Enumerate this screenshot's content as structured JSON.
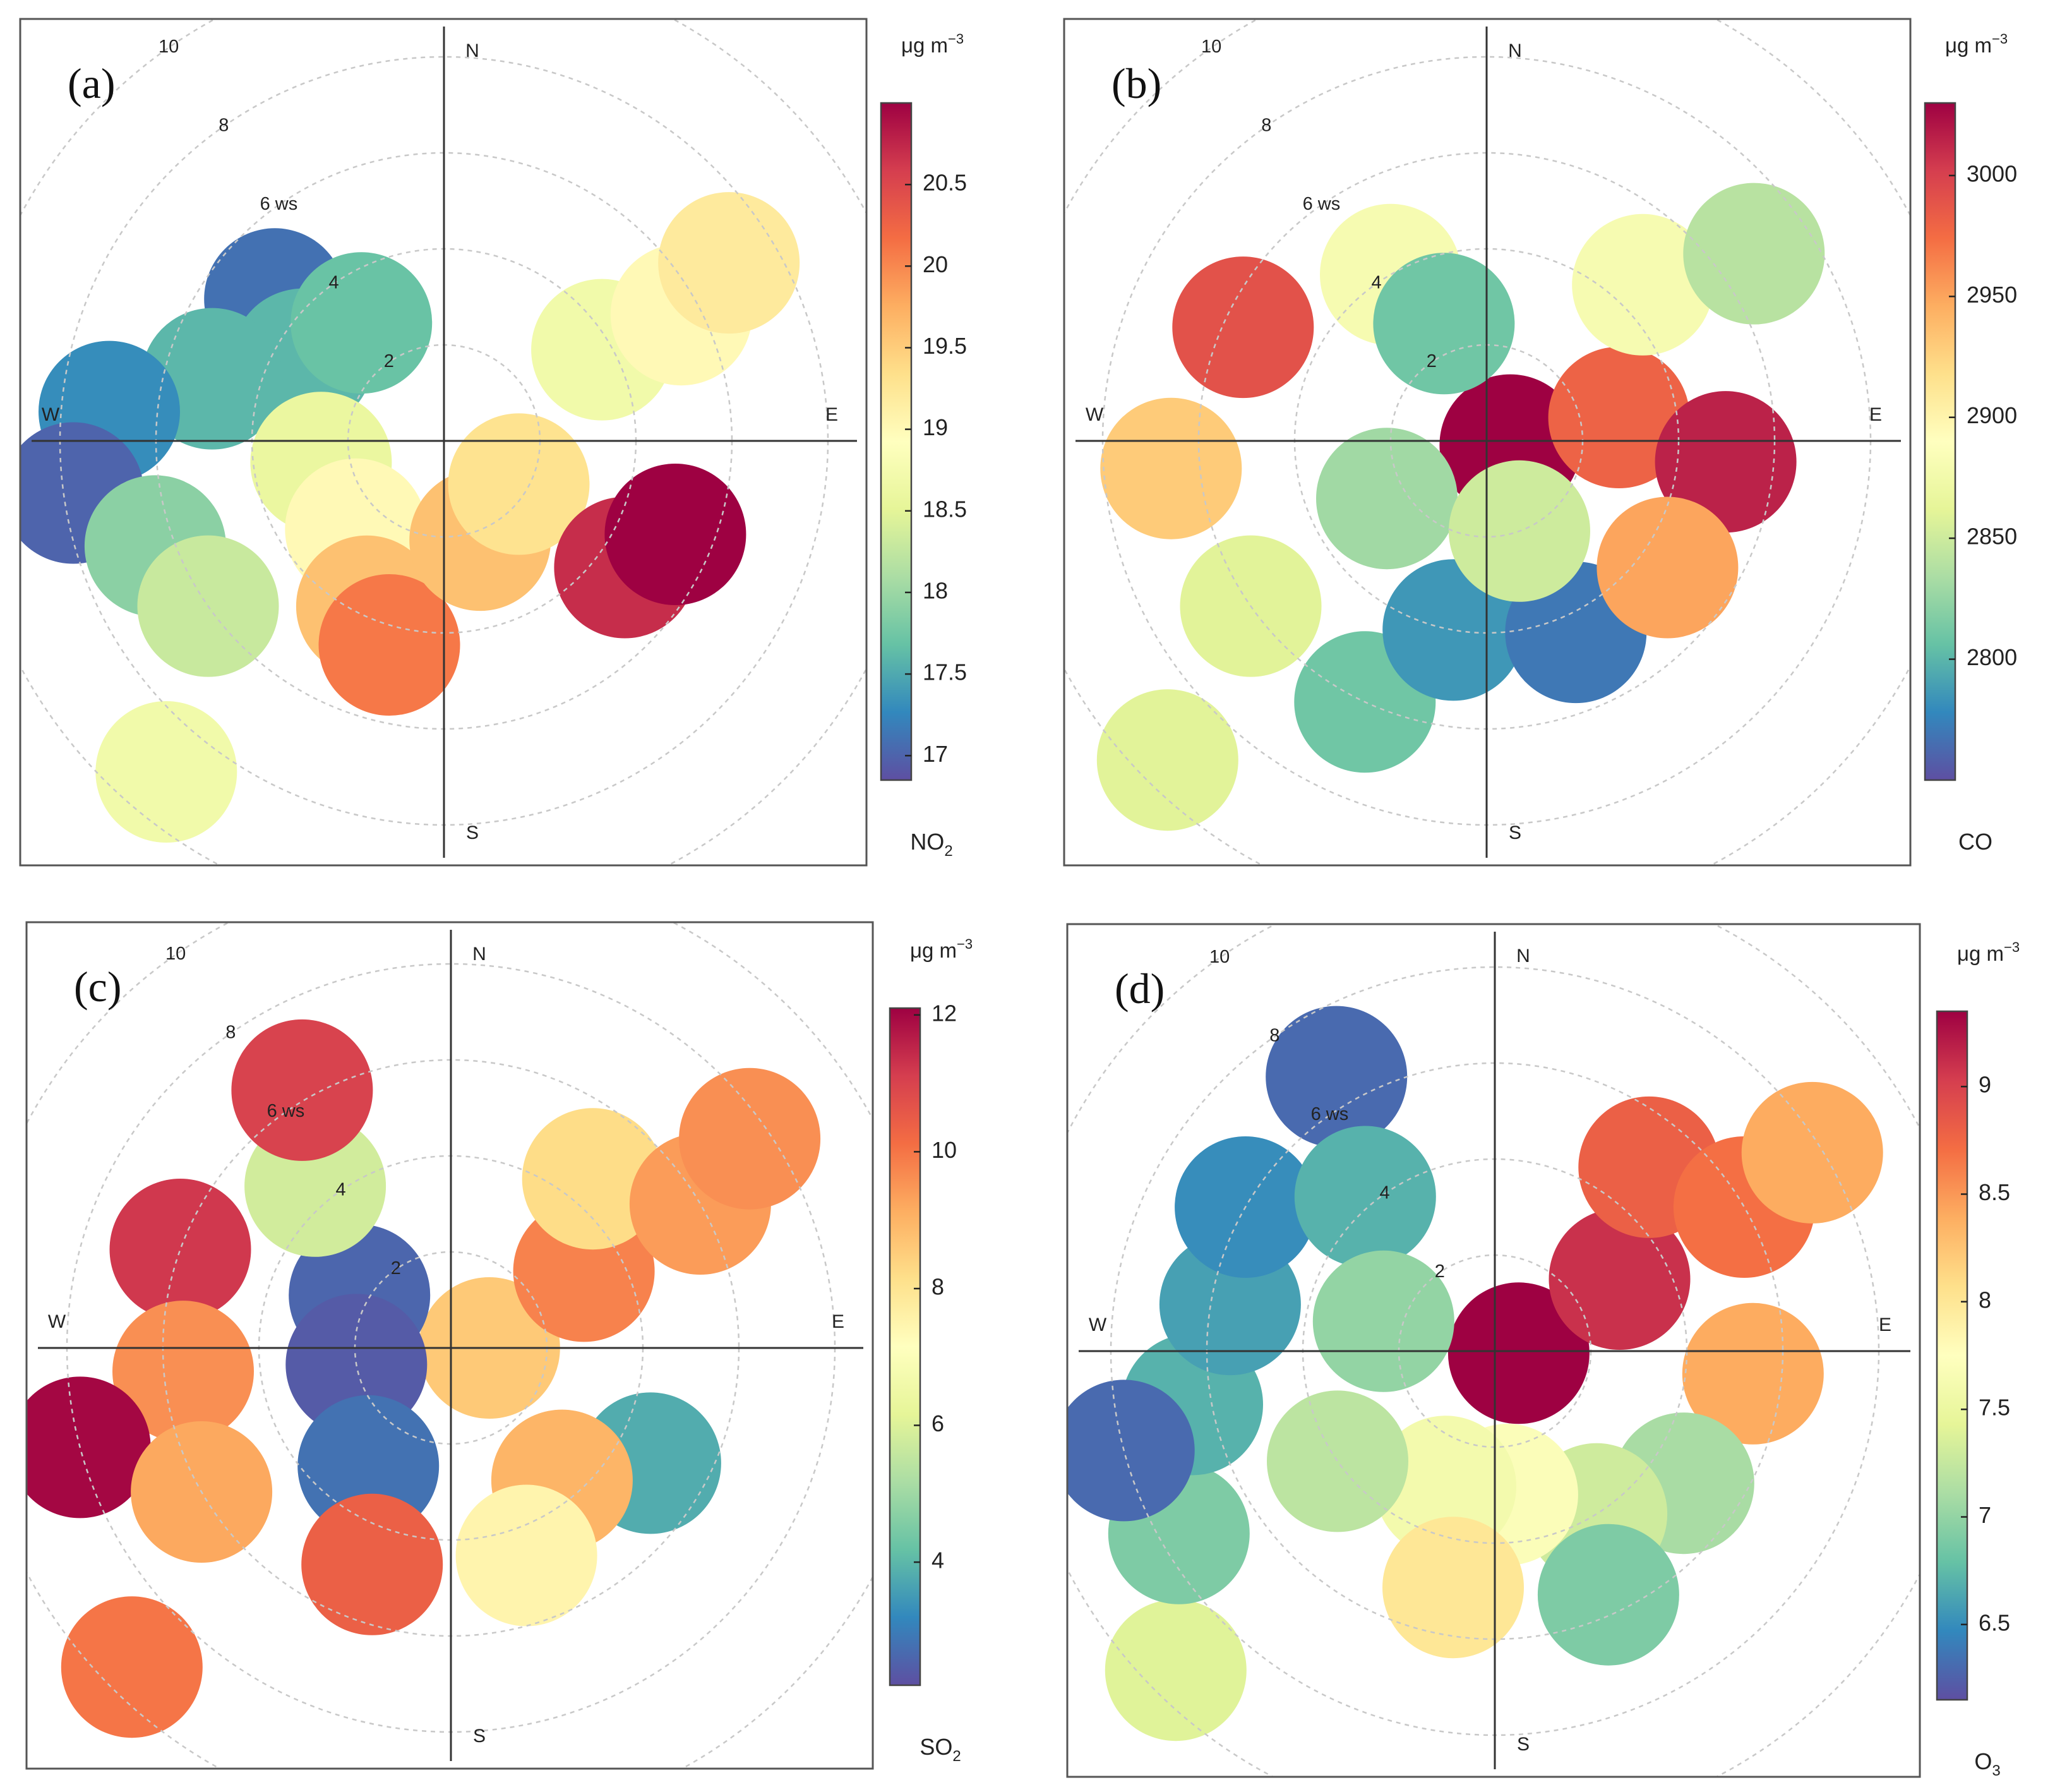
{
  "figure": {
    "colors": [
      "#5e4fa2",
      "#3288bd",
      "#66c2a5",
      "#abdda4",
      "#e6f598",
      "#ffffbf",
      "#fee08b",
      "#fdae61",
      "#f46d43",
      "#d53e4f",
      "#9e0142"
    ]
  },
  "chart_data": [
    {
      "type": "heatmap",
      "panel": "(a)",
      "subtype": "polar plot (wind speed vs wind direction)",
      "pollutant": "NO",
      "pollutant_sub": "2",
      "unit_base": "μg m",
      "unit_exp": "−3",
      "directions": {
        "N": "N",
        "E": "E",
        "S": "S",
        "W": "W"
      },
      "ws_rings": [
        2,
        4,
        6,
        8,
        10
      ],
      "ws_ring_labels": [
        "2",
        "4",
        "6 ws",
        "8",
        "10"
      ],
      "colorbar": {
        "range": [
          16.85,
          21.0
        ],
        "ticks": [
          17,
          17.5,
          18,
          18.5,
          19,
          19.5,
          20,
          20.5
        ],
        "tick_labels": [
          "17",
          "17.5",
          "18",
          "18.5",
          "19",
          "19.5",
          "20",
          "20.5"
        ]
      },
      "blobs": [
        {
          "dir_deg": 310,
          "ws": 4.6,
          "value": 17.1
        },
        {
          "dir_deg": 300,
          "ws": 3.4,
          "value": 17.6
        },
        {
          "dir_deg": 325,
          "ws": 3.0,
          "value": 17.7
        },
        {
          "dir_deg": 285,
          "ws": 5.0,
          "value": 17.6
        },
        {
          "dir_deg": 275,
          "ws": 7.0,
          "value": 17.3
        },
        {
          "dir_deg": 262,
          "ws": 7.8,
          "value": 17.0
        },
        {
          "dir_deg": 250,
          "ws": 6.4,
          "value": 17.9
        },
        {
          "dir_deg": 235,
          "ws": 6.0,
          "value": 18.3
        },
        {
          "dir_deg": 220,
          "ws": 9.0,
          "value": 18.7
        },
        {
          "dir_deg": 260,
          "ws": 2.6,
          "value": 18.6
        },
        {
          "dir_deg": 225,
          "ws": 2.6,
          "value": 19.0
        },
        {
          "dir_deg": 205,
          "ws": 3.8,
          "value": 19.6
        },
        {
          "dir_deg": 195,
          "ws": 4.4,
          "value": 20.1
        },
        {
          "dir_deg": 160,
          "ws": 2.2,
          "value": 19.6
        },
        {
          "dir_deg": 120,
          "ws": 1.8,
          "value": 19.3
        },
        {
          "dir_deg": 125,
          "ws": 4.6,
          "value": 20.7
        },
        {
          "dir_deg": 112,
          "ws": 5.2,
          "value": 21.0
        },
        {
          "dir_deg": 60,
          "ws": 3.8,
          "value": 18.7
        },
        {
          "dir_deg": 62,
          "ws": 5.6,
          "value": 19.0
        },
        {
          "dir_deg": 58,
          "ws": 7.0,
          "value": 19.2
        }
      ]
    },
    {
      "type": "heatmap",
      "panel": "(b)",
      "subtype": "polar plot (wind speed vs wind direction)",
      "pollutant": "CO",
      "pollutant_sub": "",
      "unit_base": "μg m",
      "unit_exp": "−3",
      "directions": {
        "N": "N",
        "E": "E",
        "S": "S",
        "W": "W"
      },
      "ws_rings": [
        2,
        4,
        6,
        8,
        10
      ],
      "ws_ring_labels": [
        "2",
        "4",
        "6 ws",
        "8",
        "10"
      ],
      "colorbar": {
        "range": [
          2750,
          3030
        ],
        "ticks": [
          2800,
          2850,
          2900,
          2950,
          3000
        ],
        "tick_labels": [
          "2800",
          "2850",
          "2900",
          "2950",
          "3000"
        ]
      },
      "blobs": [
        {
          "dir_deg": 100,
          "ws": 0.5,
          "value": 3030
        },
        {
          "dir_deg": 80,
          "ws": 2.8,
          "value": 2980
        },
        {
          "dir_deg": 95,
          "ws": 5.0,
          "value": 3015
        },
        {
          "dir_deg": 45,
          "ws": 4.6,
          "value": 2880
        },
        {
          "dir_deg": 55,
          "ws": 6.8,
          "value": 2840
        },
        {
          "dir_deg": 330,
          "ws": 4.0,
          "value": 2880
        },
        {
          "dir_deg": 340,
          "ws": 2.6,
          "value": 2810
        },
        {
          "dir_deg": 295,
          "ws": 5.6,
          "value": 2990
        },
        {
          "dir_deg": 265,
          "ws": 6.6,
          "value": 2930
        },
        {
          "dir_deg": 235,
          "ws": 6.0,
          "value": 2860
        },
        {
          "dir_deg": 225,
          "ws": 9.4,
          "value": 2860
        },
        {
          "dir_deg": 205,
          "ws": 6.0,
          "value": 2810
        },
        {
          "dir_deg": 190,
          "ws": 4.0,
          "value": 2785
        },
        {
          "dir_deg": 155,
          "ws": 4.4,
          "value": 2770
        },
        {
          "dir_deg": 125,
          "ws": 4.6,
          "value": 2950
        },
        {
          "dir_deg": 240,
          "ws": 2.4,
          "value": 2830
        },
        {
          "dir_deg": 160,
          "ws": 2.0,
          "value": 2850
        }
      ]
    },
    {
      "type": "heatmap",
      "panel": "(c)",
      "subtype": "polar plot (wind speed vs wind direction)",
      "pollutant": "SO",
      "pollutant_sub": "2",
      "unit_base": "μg m",
      "unit_exp": "−3",
      "directions": {
        "N": "N",
        "E": "E",
        "S": "S",
        "W": "W"
      },
      "ws_rings": [
        2,
        4,
        6,
        8,
        10
      ],
      "ws_ring_labels": [
        "2",
        "4",
        "6 ws",
        "8",
        "10"
      ],
      "colorbar": {
        "range": [
          2.2,
          12.1
        ],
        "ticks": [
          4,
          6,
          8,
          10,
          12
        ],
        "tick_labels": [
          "4",
          "6",
          "8",
          "10",
          "12"
        ]
      },
      "blobs": [
        {
          "dir_deg": 90,
          "ws": 0.8,
          "value": 8.6
        },
        {
          "dir_deg": 60,
          "ws": 3.2,
          "value": 9.8
        },
        {
          "dir_deg": 40,
          "ws": 4.6,
          "value": 8.2
        },
        {
          "dir_deg": 60,
          "ws": 6.0,
          "value": 9.4
        },
        {
          "dir_deg": 55,
          "ws": 7.6,
          "value": 9.6
        },
        {
          "dir_deg": 120,
          "ws": 4.8,
          "value": 3.8
        },
        {
          "dir_deg": 140,
          "ws": 3.6,
          "value": 9.0
        },
        {
          "dir_deg": 160,
          "ws": 4.6,
          "value": 7.5
        },
        {
          "dir_deg": 300,
          "ws": 2.2,
          "value": 2.6
        },
        {
          "dir_deg": 260,
          "ws": 2.0,
          "value": 2.4
        },
        {
          "dir_deg": 215,
          "ws": 3.0,
          "value": 2.8
        },
        {
          "dir_deg": 320,
          "ws": 4.4,
          "value": 5.8
        },
        {
          "dir_deg": 330,
          "ws": 6.2,
          "value": 11.0
        },
        {
          "dir_deg": 290,
          "ws": 6.0,
          "value": 11.2
        },
        {
          "dir_deg": 265,
          "ws": 5.6,
          "value": 9.6
        },
        {
          "dir_deg": 255,
          "ws": 8.0,
          "value": 12.0
        },
        {
          "dir_deg": 240,
          "ws": 6.0,
          "value": 9.2
        },
        {
          "dir_deg": 200,
          "ws": 4.8,
          "value": 10.4
        },
        {
          "dir_deg": 225,
          "ws": 9.4,
          "value": 10.0
        }
      ]
    },
    {
      "type": "heatmap",
      "panel": "(d)",
      "subtype": "polar plot (wind speed vs wind direction)",
      "pollutant": "O",
      "pollutant_sub": "3",
      "unit_base": "μg m",
      "unit_exp": "−3",
      "directions": {
        "N": "N",
        "E": "E",
        "S": "S",
        "W": "W"
      },
      "ws_rings": [
        2,
        4,
        6,
        8,
        10
      ],
      "ws_ring_labels": [
        "2",
        "4",
        "6 ws",
        "8",
        "10"
      ],
      "colorbar": {
        "range": [
          6.15,
          9.35
        ],
        "ticks": [
          6.5,
          7,
          7.5,
          8,
          8.5,
          9
        ],
        "tick_labels": [
          "6.5",
          "7",
          "7.5",
          "8",
          "8.5",
          "9"
        ]
      },
      "blobs": [
        {
          "dir_deg": 95,
          "ws": 0.5,
          "value": 9.35
        },
        {
          "dir_deg": 60,
          "ws": 3.0,
          "value": 9.1
        },
        {
          "dir_deg": 40,
          "ws": 5.0,
          "value": 8.8
        },
        {
          "dir_deg": 60,
          "ws": 6.0,
          "value": 8.7
        },
        {
          "dir_deg": 58,
          "ws": 7.8,
          "value": 8.4
        },
        {
          "dir_deg": 95,
          "ws": 5.4,
          "value": 8.4
        },
        {
          "dir_deg": 125,
          "ws": 4.8,
          "value": 7.1
        },
        {
          "dir_deg": 148,
          "ws": 4.0,
          "value": 7.3
        },
        {
          "dir_deg": 155,
          "ws": 5.6,
          "value": 6.9
        },
        {
          "dir_deg": 175,
          "ws": 3.0,
          "value": 7.7
        },
        {
          "dir_deg": 200,
          "ws": 3.0,
          "value": 7.6
        },
        {
          "dir_deg": 190,
          "ws": 5.0,
          "value": 8.0
        },
        {
          "dir_deg": 235,
          "ws": 4.0,
          "value": 7.2
        },
        {
          "dir_deg": 225,
          "ws": 9.4,
          "value": 7.4
        },
        {
          "dir_deg": 240,
          "ws": 7.6,
          "value": 6.9
        },
        {
          "dir_deg": 260,
          "ws": 6.4,
          "value": 6.7
        },
        {
          "dir_deg": 255,
          "ws": 8.0,
          "value": 6.3
        },
        {
          "dir_deg": 280,
          "ws": 5.6,
          "value": 6.6
        },
        {
          "dir_deg": 300,
          "ws": 6.0,
          "value": 6.5
        },
        {
          "dir_deg": 330,
          "ws": 6.6,
          "value": 6.3
        },
        {
          "dir_deg": 320,
          "ws": 4.2,
          "value": 6.7
        },
        {
          "dir_deg": 285,
          "ws": 2.4,
          "value": 7.0
        }
      ]
    }
  ]
}
